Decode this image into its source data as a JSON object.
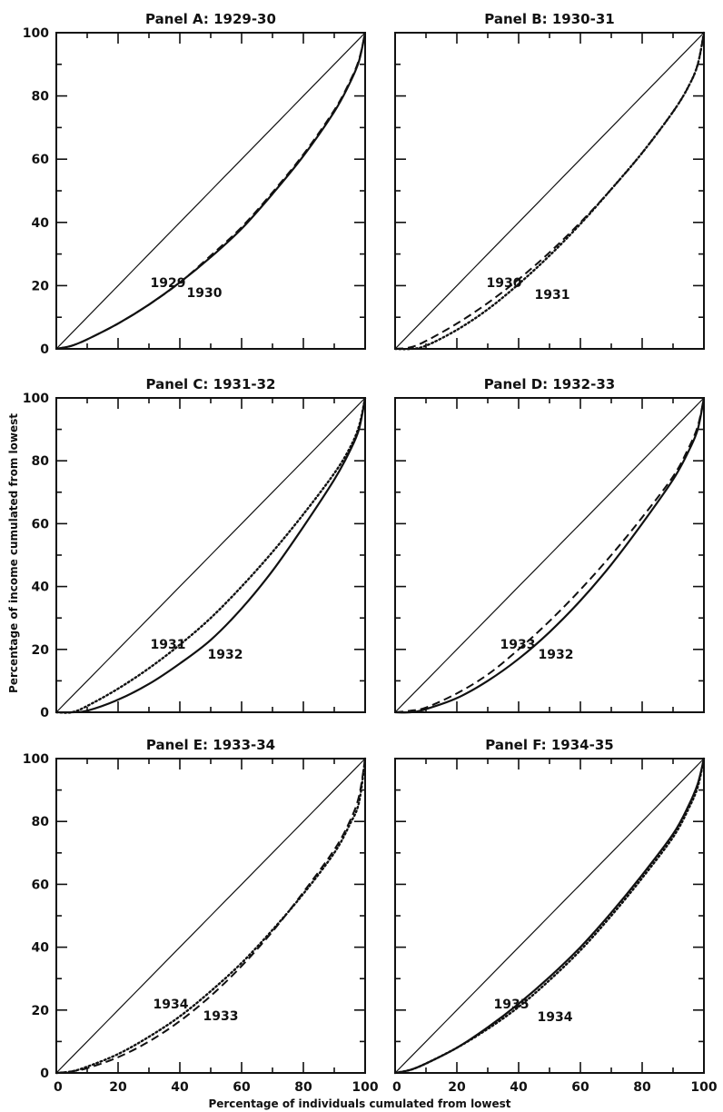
{
  "figure": {
    "ylabel": "Percentage of income cumulated from lowest",
    "xlabel": "Percentage of individuals cumulated from lowest"
  },
  "chart_data": [
    {
      "type": "line",
      "title": "Panel A:  1929-30",
      "xlim": [
        0,
        100
      ],
      "ylim": [
        0,
        100
      ],
      "xticks": [],
      "yticks": [
        "0",
        "20",
        "40",
        "60",
        "80",
        "100"
      ],
      "x": [
        0,
        5,
        10,
        20,
        30,
        40,
        50,
        60,
        70,
        80,
        90,
        95,
        98,
        100
      ],
      "series": [
        {
          "name": "",
          "style": "solid-thin",
          "values": [
            0,
            5,
            10,
            20,
            30,
            40,
            50,
            60,
            70,
            80,
            90,
            95,
            98,
            100
          ]
        },
        {
          "name": "1929",
          "style": "solid",
          "values": [
            0,
            1,
            3,
            8,
            14,
            21,
            29,
            38,
            49,
            61,
            75,
            84,
            91,
            100
          ]
        },
        {
          "name": "1930",
          "style": "dashed",
          "values": [
            0,
            1,
            3,
            8,
            14,
            21,
            29.5,
            38.5,
            49.5,
            61.5,
            75.5,
            84.5,
            91.5,
            100
          ]
        }
      ]
    },
    {
      "type": "line",
      "title": "Panel B:  1930-31",
      "xlim": [
        0,
        100
      ],
      "ylim": [
        0,
        100
      ],
      "xticks": [],
      "yticks": [],
      "x": [
        0,
        5,
        10,
        20,
        30,
        40,
        50,
        60,
        70,
        80,
        90,
        95,
        98,
        100
      ],
      "series": [
        {
          "name": "",
          "style": "solid-thin",
          "values": [
            0,
            5,
            10,
            20,
            30,
            40,
            50,
            60,
            70,
            80,
            90,
            95,
            98,
            100
          ]
        },
        {
          "name": "1930",
          "style": "dashed",
          "values": [
            0,
            0.5,
            2.5,
            8,
            14.5,
            22,
            30.5,
            40,
            50.5,
            62,
            75,
            83,
            90,
            100
          ]
        },
        {
          "name": "1931",
          "style": "dotted",
          "values": [
            0,
            0,
            1,
            6,
            12.5,
            20.5,
            29.5,
            39.5,
            50.5,
            62,
            75,
            83,
            90,
            100
          ]
        }
      ]
    },
    {
      "type": "line",
      "title": "Panel C:  1931-32",
      "xlim": [
        0,
        100
      ],
      "ylim": [
        0,
        100
      ],
      "xticks": [],
      "yticks": [
        "0",
        "20",
        "40",
        "60",
        "80",
        "100"
      ],
      "x": [
        0,
        5,
        10,
        20,
        30,
        40,
        50,
        60,
        70,
        80,
        90,
        95,
        98,
        100
      ],
      "series": [
        {
          "name": "",
          "style": "solid-thin",
          "values": [
            0,
            5,
            10,
            20,
            30,
            40,
            50,
            60,
            70,
            80,
            90,
            95,
            98,
            100
          ]
        },
        {
          "name": "1931",
          "style": "dotted",
          "values": [
            0,
            0,
            2,
            7.5,
            14,
            21.5,
            30,
            40,
            51,
            63,
            76,
            84,
            91,
            100
          ]
        },
        {
          "name": "1932",
          "style": "solid",
          "values": [
            0,
            0,
            0.5,
            4,
            9,
            15.5,
            23,
            33,
            45,
            59,
            74,
            83,
            90,
            100
          ]
        }
      ]
    },
    {
      "type": "line",
      "title": "Panel D:  1932-33",
      "xlim": [
        0,
        100
      ],
      "ylim": [
        0,
        100
      ],
      "xticks": [],
      "yticks": [],
      "x": [
        0,
        5,
        10,
        20,
        30,
        40,
        50,
        60,
        70,
        80,
        90,
        95,
        98,
        100
      ],
      "series": [
        {
          "name": "",
          "style": "solid-thin",
          "values": [
            0,
            5,
            10,
            20,
            30,
            40,
            50,
            60,
            70,
            80,
            90,
            95,
            98,
            100
          ]
        },
        {
          "name": "1933",
          "style": "dashed",
          "values": [
            0,
            0.5,
            1.5,
            6,
            12,
            20,
            29,
            39,
            50,
            62,
            75,
            84,
            91,
            100
          ]
        },
        {
          "name": "1932",
          "style": "solid",
          "values": [
            0,
            0,
            1,
            4.5,
            10,
            17,
            25.5,
            35.5,
            47,
            60,
            74,
            83,
            90,
            100
          ]
        }
      ]
    },
    {
      "type": "line",
      "title": "Panel E:  1933-34",
      "xlim": [
        0,
        100
      ],
      "ylim": [
        0,
        100
      ],
      "xticks": [
        "0",
        "20",
        "40",
        "60",
        "80",
        "100"
      ],
      "yticks": [
        "0",
        "20",
        "40",
        "60",
        "80",
        "100"
      ],
      "x": [
        0,
        5,
        10,
        20,
        30,
        40,
        50,
        60,
        70,
        80,
        90,
        95,
        98,
        100
      ],
      "series": [
        {
          "name": "",
          "style": "solid-thin",
          "values": [
            0,
            5,
            10,
            20,
            30,
            40,
            50,
            60,
            70,
            80,
            90,
            95,
            98,
            100
          ]
        },
        {
          "name": "1934",
          "style": "dotted",
          "values": [
            0,
            0.5,
            2,
            6,
            11.5,
            18,
            26,
            35,
            45.5,
            57,
            70,
            79,
            86,
            100
          ]
        },
        {
          "name": "1933",
          "style": "dashed",
          "values": [
            0,
            0.5,
            1.5,
            5,
            10,
            16.5,
            24.5,
            34,
            45,
            57.5,
            71,
            80,
            88,
            100
          ]
        }
      ]
    },
    {
      "type": "line",
      "title": "Panel F:  1934-35",
      "xlim": [
        0,
        100
      ],
      "ylim": [
        0,
        100
      ],
      "xticks": [
        "0",
        "20",
        "40",
        "60",
        "80",
        "100"
      ],
      "yticks": [],
      "x": [
        0,
        5,
        10,
        20,
        30,
        40,
        50,
        60,
        70,
        80,
        90,
        95,
        98,
        100
      ],
      "series": [
        {
          "name": "",
          "style": "solid-thin",
          "values": [
            0,
            5,
            10,
            20,
            30,
            40,
            50,
            60,
            70,
            80,
            90,
            95,
            98,
            100
          ]
        },
        {
          "name": "1935",
          "style": "solid",
          "values": [
            0,
            1,
            3,
            8,
            14.5,
            22,
            30.5,
            40,
            51,
            63,
            76,
            85,
            92,
            100
          ]
        },
        {
          "name": "1934",
          "style": "dotted",
          "values": [
            0,
            1,
            3,
            8,
            14,
            21,
            29.5,
            39,
            50,
            62,
            75,
            84,
            91,
            100
          ]
        }
      ]
    }
  ]
}
